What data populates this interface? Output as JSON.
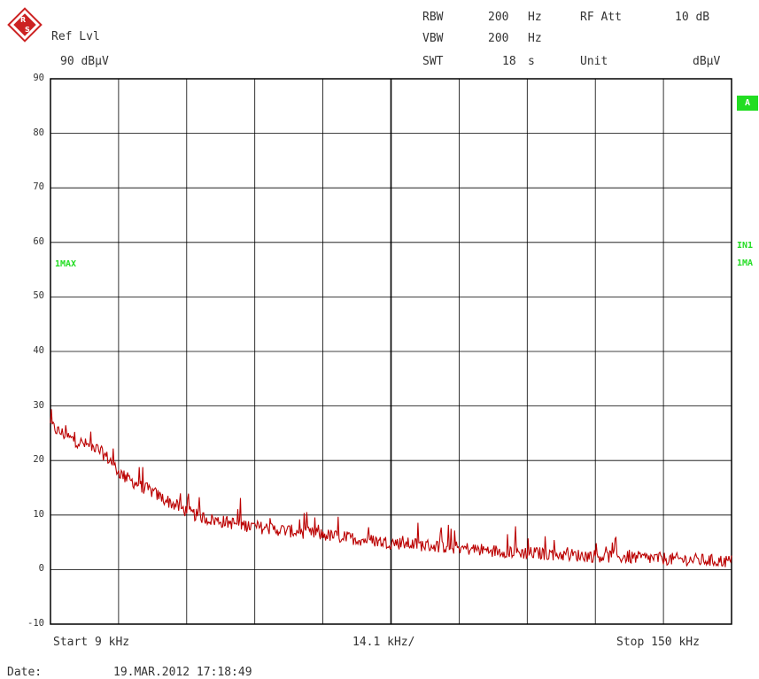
{
  "header": {
    "ref_lvl_label": "Ref Lvl",
    "ref_lvl_value": "90 dBµV",
    "rbw_label": "RBW",
    "rbw_value": "200",
    "rbw_unit": "Hz",
    "vbw_label": "VBW",
    "vbw_value": "200",
    "vbw_unit": "Hz",
    "swt_label": "SWT",
    "swt_value": "18",
    "swt_unit": "s",
    "rfatt_label": "RF Att",
    "rfatt_value": "10 dB",
    "unit_label": "Unit",
    "unit_value": "dBµV"
  },
  "markers": {
    "trace_left": "1MAX",
    "badge": "A",
    "right_top": "IN1",
    "right_bottom": "1MA"
  },
  "footer": {
    "start": "Start 9 kHz",
    "span_div": "14.1 kHz/",
    "stop": "Stop 150 kHz",
    "date_label": "Date:",
    "date_value": "19.MAR.2012  17:18:49"
  },
  "colors": {
    "trace": "#bb0000",
    "grid": "#000000",
    "marker": "#22dd22",
    "logo": "#cc2222"
  },
  "chart_data": {
    "type": "line",
    "xlabel": "",
    "ylabel": "",
    "xlim": [
      9,
      150
    ],
    "ylim": [
      -10,
      90
    ],
    "yticks": [
      "90",
      "80",
      "70",
      "60",
      "50",
      "40",
      "30",
      "20",
      "10",
      "0",
      "-10"
    ],
    "grid": true,
    "series": [
      {
        "values": [
          [
            9,
            26.5
          ],
          [
            10.4,
            25.5
          ],
          [
            11.8,
            24.8
          ],
          [
            13.2,
            24.0
          ],
          [
            14.6,
            23.5
          ],
          [
            16.0,
            23.0
          ],
          [
            17.4,
            22.6
          ],
          [
            18.8,
            22.0
          ],
          [
            20.2,
            21.0
          ],
          [
            21.6,
            19.8
          ],
          [
            23.0,
            18.0
          ],
          [
            24.4,
            17.0
          ],
          [
            25.8,
            16.2
          ],
          [
            27.2,
            15.6
          ],
          [
            28.6,
            14.9
          ],
          [
            30.0,
            14.3
          ],
          [
            31.4,
            13.5
          ],
          [
            32.8,
            12.8
          ],
          [
            34.2,
            12.1
          ],
          [
            35.6,
            11.5
          ],
          [
            37.0,
            10.8
          ],
          [
            38.4,
            10.2
          ],
          [
            39.8,
            9.8
          ],
          [
            41.2,
            9.4
          ],
          [
            42.6,
            9.1
          ],
          [
            44.0,
            8.9
          ],
          [
            45.4,
            8.7
          ],
          [
            46.8,
            8.5
          ],
          [
            48.2,
            8.3
          ],
          [
            49.6,
            8.1
          ],
          [
            51.0,
            7.9
          ],
          [
            52.4,
            7.7
          ],
          [
            53.8,
            7.6
          ],
          [
            55.2,
            7.4
          ],
          [
            56.6,
            7.3
          ],
          [
            58.0,
            7.1
          ],
          [
            59.4,
            7.0
          ],
          [
            60.8,
            6.9
          ],
          [
            62.2,
            6.7
          ],
          [
            63.6,
            6.6
          ],
          [
            65.0,
            6.4
          ],
          [
            66.4,
            6.3
          ],
          [
            67.8,
            6.1
          ],
          [
            69.2,
            6.0
          ],
          [
            70.6,
            5.8
          ],
          [
            72.0,
            5.7
          ],
          [
            73.4,
            5.5
          ],
          [
            74.8,
            5.4
          ],
          [
            76.2,
            5.3
          ],
          [
            77.6,
            5.1
          ],
          [
            79.0,
            5.0
          ],
          [
            80.4,
            4.9
          ],
          [
            81.8,
            4.8
          ],
          [
            83.2,
            4.7
          ],
          [
            84.6,
            4.6
          ],
          [
            86.0,
            4.5
          ],
          [
            87.4,
            4.4
          ],
          [
            88.8,
            4.3
          ],
          [
            90.2,
            4.2
          ],
          [
            91.6,
            4.1
          ],
          [
            93.0,
            4.0
          ],
          [
            94.4,
            3.9
          ],
          [
            95.8,
            3.8
          ],
          [
            97.2,
            3.7
          ],
          [
            98.6,
            3.6
          ],
          [
            100.0,
            3.5
          ],
          [
            101.4,
            3.4
          ],
          [
            102.8,
            3.4
          ],
          [
            104.2,
            3.3
          ],
          [
            105.6,
            3.2
          ],
          [
            107.0,
            3.1
          ],
          [
            108.4,
            3.0
          ],
          [
            109.8,
            3.0
          ],
          [
            111.2,
            2.9
          ],
          [
            112.6,
            2.9
          ],
          [
            114.0,
            2.8
          ],
          [
            115.4,
            2.7
          ],
          [
            116.8,
            2.7
          ],
          [
            118.2,
            2.6
          ],
          [
            119.6,
            2.6
          ],
          [
            121.0,
            2.5
          ],
          [
            122.4,
            2.5
          ],
          [
            123.8,
            2.4
          ],
          [
            125.2,
            2.4
          ],
          [
            126.6,
            2.3
          ],
          [
            128.0,
            2.3
          ],
          [
            129.4,
            2.2
          ],
          [
            130.8,
            2.2
          ],
          [
            132.2,
            2.1
          ],
          [
            133.6,
            2.1
          ],
          [
            135.0,
            2.0
          ],
          [
            136.4,
            2.0
          ],
          [
            137.8,
            1.9
          ],
          [
            139.2,
            1.9
          ],
          [
            140.6,
            1.8
          ],
          [
            142.0,
            1.8
          ],
          [
            143.4,
            1.7
          ],
          [
            144.8,
            1.7
          ],
          [
            146.2,
            1.6
          ],
          [
            147.6,
            1.6
          ],
          [
            150,
            1.5
          ]
        ]
      }
    ]
  }
}
